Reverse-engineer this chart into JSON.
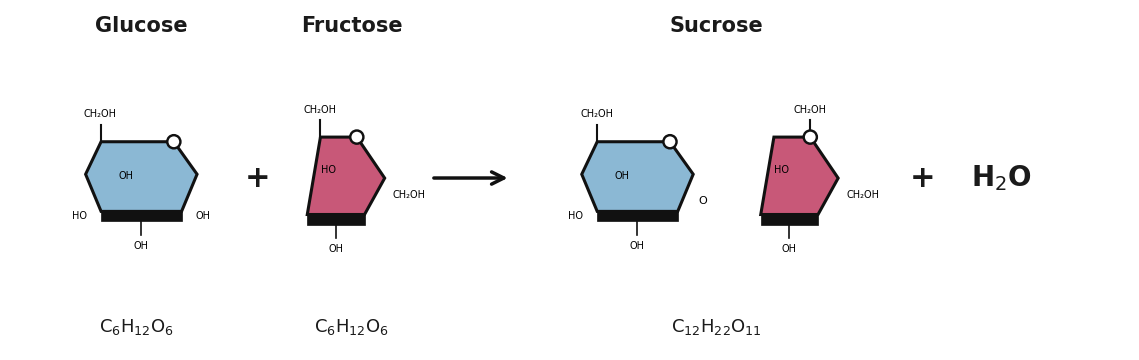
{
  "title_glucose": "Glucose",
  "title_fructose": "Fructose",
  "title_sucrose": "Sucrose",
  "glucose_color": "#8BB8D4",
  "fructose_color": "#C85878",
  "bg_color": "#ffffff",
  "text_color": "#1a1a1a",
  "ring_lw": 2.2,
  "sucrose_formula_c": "12",
  "sucrose_formula_h": "22",
  "sucrose_formula_o": "11"
}
